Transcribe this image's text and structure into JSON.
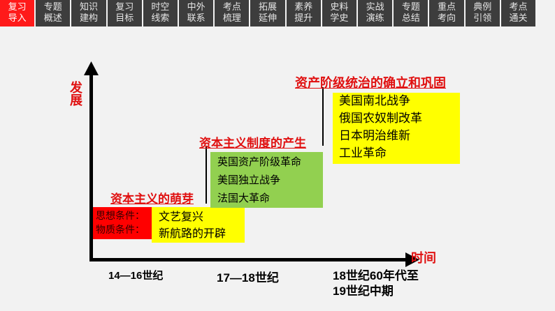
{
  "tabs": [
    {
      "label": "复习\n导入"
    },
    {
      "label": "专题\n概述"
    },
    {
      "label": "知识\n建构"
    },
    {
      "label": "复习\n目标"
    },
    {
      "label": "时空\n线索"
    },
    {
      "label": "中外\n联系"
    },
    {
      "label": "考点\n梳理"
    },
    {
      "label": "拓展\n延伸"
    },
    {
      "label": "素养\n提升"
    },
    {
      "label": "史料\n学史"
    },
    {
      "label": "实战\n演练"
    },
    {
      "label": "专题\n总结"
    },
    {
      "label": "重点\n考向"
    },
    {
      "label": "典例\n引领"
    },
    {
      "label": "考点\n通关"
    }
  ],
  "active_tab": 0,
  "axis": {
    "y_label": "发展",
    "x_label": "时间"
  },
  "stages": [
    {
      "title": "资本主义的萌芽",
      "period": "14—16世纪",
      "conditions": [
        "思想条件：",
        "物质条件："
      ],
      "items": [
        "文艺复兴",
        "新航路的开辟"
      ]
    },
    {
      "title": "资本主义制度的产生",
      "period": "17—18世纪",
      "items": [
        "英国资产阶级革命",
        "美国独立战争",
        "法国大革命"
      ]
    },
    {
      "title": "资产阶级统治的确立和巩固",
      "period_line1": "18世纪60年代至",
      "period_line2": "19世纪中期",
      "items": [
        "美国南北战争",
        "俄国农奴制改革",
        "日本明治维新",
        "工业革命"
      ]
    }
  ],
  "colors": {
    "active_tab": "#ff1a1a",
    "tab": "#3d3d3d",
    "title": "#e01010",
    "red_box": "#ff0000",
    "yellow_box": "#ffff00",
    "green_box": "#92d050"
  }
}
